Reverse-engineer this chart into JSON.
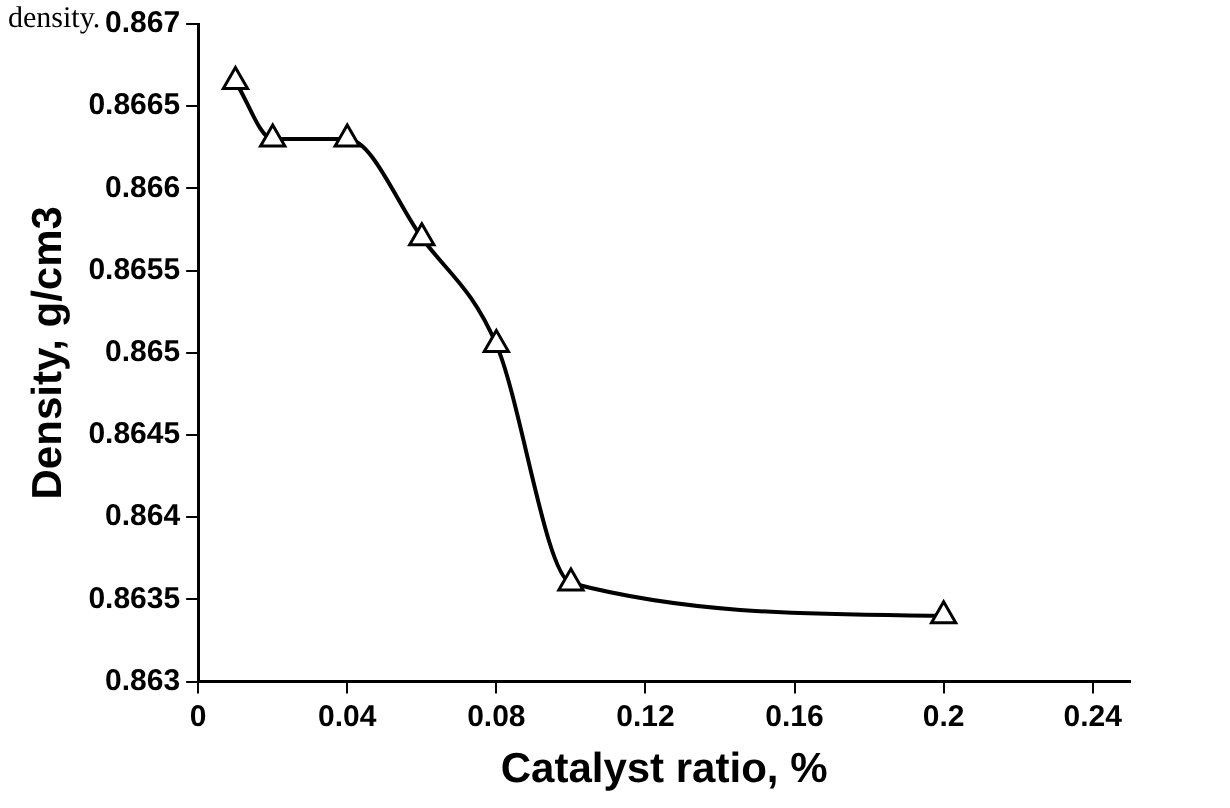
{
  "chart_data": {
    "type": "line",
    "xlabel": "Catalyst ratio, %",
    "ylabel": "Density, g/cm3",
    "annotations": [
      "density."
    ],
    "x": [
      0.01,
      0.02,
      0.04,
      0.06,
      0.08,
      0.1,
      0.2
    ],
    "series": [
      {
        "color": "#000000",
        "values": [
          0.86665,
          0.8663,
          0.8663,
          0.8657,
          0.86505,
          0.8636,
          0.8634
        ]
      }
    ],
    "xlim": [
      0,
      0.25
    ],
    "xticks": [
      0,
      0.04,
      0.08,
      0.12,
      0.16,
      0.2,
      0.24
    ],
    "ylim": [
      0.863,
      0.867
    ],
    "yticks": [
      0.863,
      0.8635,
      0.864,
      0.8645,
      0.865,
      0.8655,
      0.866,
      0.8665,
      0.867
    ],
    "grid": false,
    "legend": false,
    "marker": "triangle",
    "line_style": "solid"
  }
}
